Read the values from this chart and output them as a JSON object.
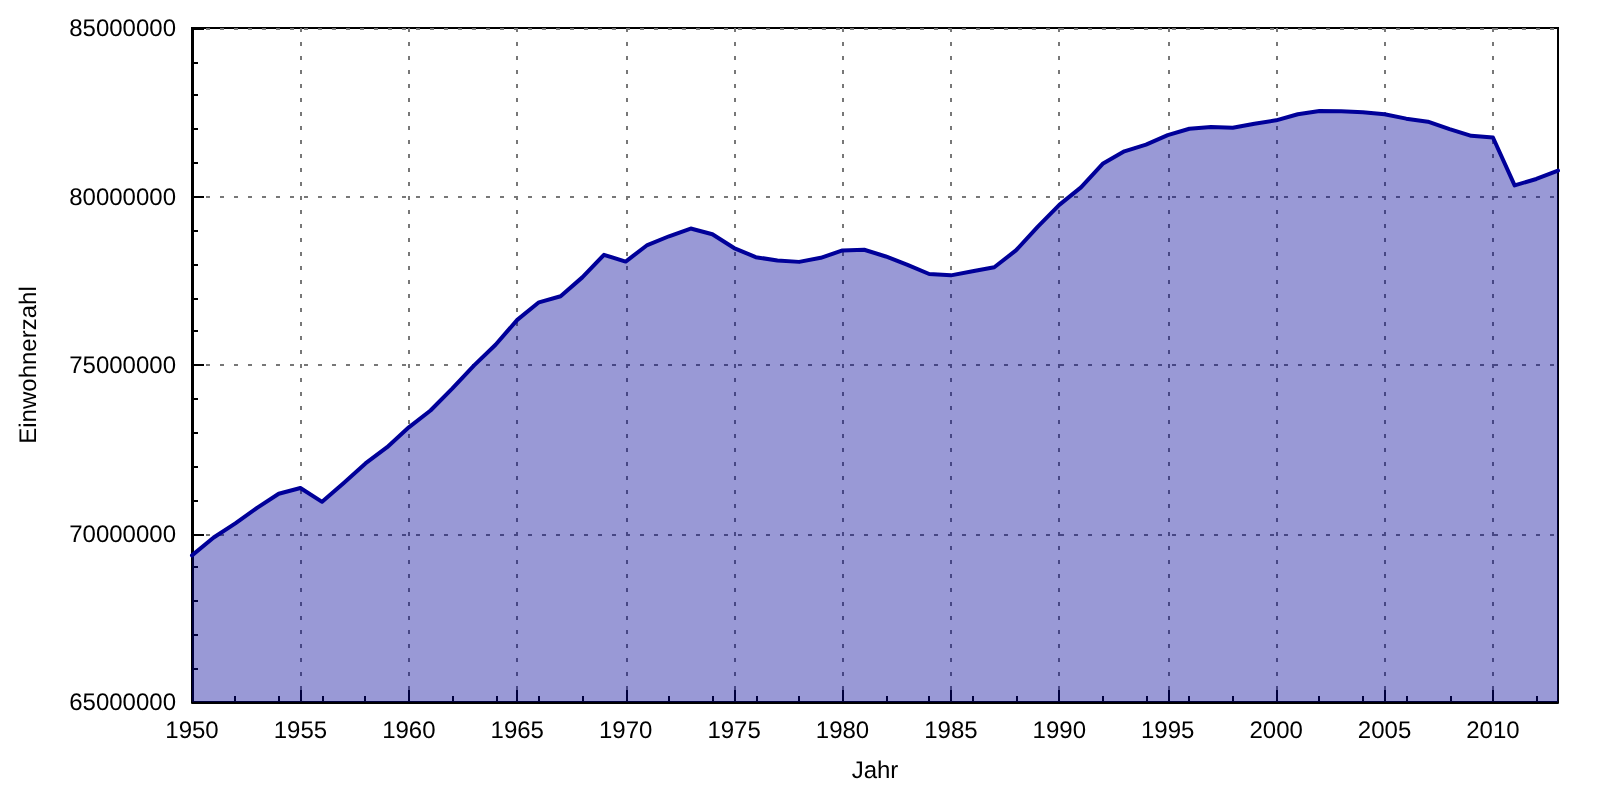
{
  "chart_data": {
    "type": "area",
    "xlabel": "Jahr",
    "ylabel": "Einwohnerzahl",
    "x": [
      1950,
      1951,
      1952,
      1953,
      1954,
      1955,
      1956,
      1957,
      1958,
      1959,
      1960,
      1961,
      1962,
      1963,
      1964,
      1965,
      1966,
      1967,
      1968,
      1969,
      1970,
      1971,
      1972,
      1973,
      1974,
      1975,
      1976,
      1977,
      1978,
      1979,
      1980,
      1981,
      1982,
      1983,
      1984,
      1985,
      1986,
      1987,
      1988,
      1989,
      1990,
      1991,
      1992,
      1993,
      1994,
      1995,
      1996,
      1997,
      1998,
      1999,
      2000,
      2001,
      2002,
      2003,
      2004,
      2005,
      2006,
      2007,
      2008,
      2009,
      2010,
      2011,
      2012,
      2013
    ],
    "series": [
      {
        "color": "#000099",
        "values": [
          69350000,
          69880000,
          70300000,
          70760000,
          71180000,
          71350000,
          70940000,
          71500000,
          72080000,
          72560000,
          73150000,
          73650000,
          74300000,
          74980000,
          75600000,
          76340000,
          76860000,
          77040000,
          77600000,
          78270000,
          78070000,
          78560000,
          78820000,
          79050000,
          78880000,
          78470000,
          78200000,
          78100000,
          78060000,
          78180000,
          78400000,
          78420000,
          78220000,
          77970000,
          77700000,
          77660000,
          77780000,
          77900000,
          78400000,
          79100000,
          79750000,
          80270000,
          80970000,
          81340000,
          81540000,
          81820000,
          82010000,
          82060000,
          82040000,
          82160000,
          82260000,
          82440000,
          82540000,
          82530000,
          82500000,
          82440000,
          82310000,
          82220000,
          82000000,
          81800000,
          81750000,
          80330000,
          80520000,
          80770000
        ]
      }
    ],
    "xlim": [
      1950,
      2013
    ],
    "xticks": [
      1950,
      1955,
      1960,
      1965,
      1970,
      1975,
      1980,
      1985,
      1990,
      1995,
      2000,
      2005,
      2010
    ],
    "ylim": [
      65000000,
      85000000
    ],
    "yticks": [
      65000000,
      70000000,
      75000000,
      80000000,
      85000000
    ],
    "grid": true,
    "line_style": "solid"
  }
}
